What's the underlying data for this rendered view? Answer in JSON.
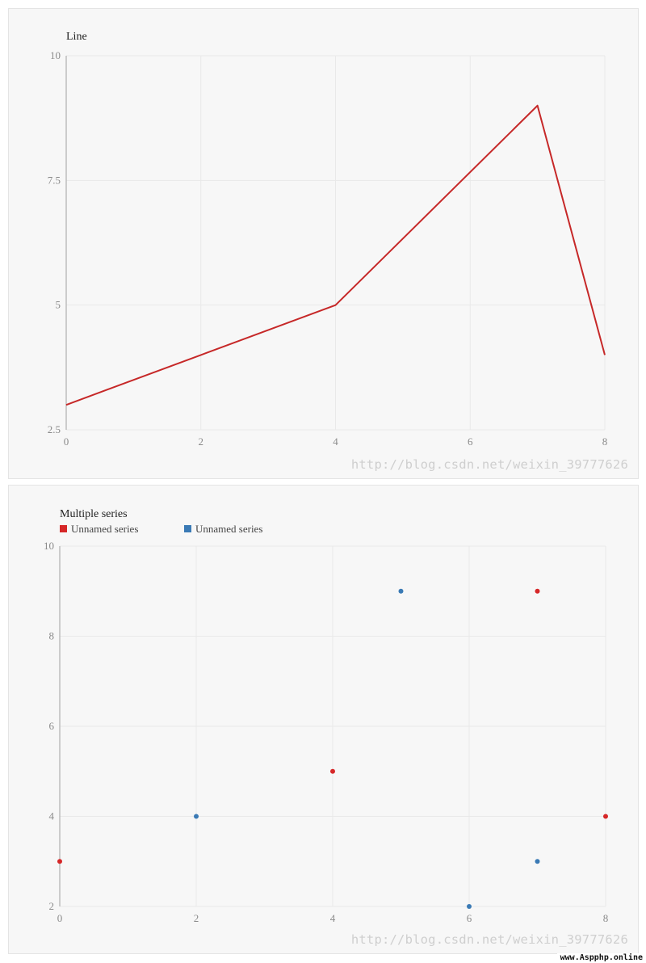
{
  "chart_data": [
    {
      "type": "line",
      "title": "Line",
      "xlabel": "",
      "ylabel": "",
      "xlim": [
        0,
        8
      ],
      "ylim": [
        2.5,
        10
      ],
      "x_ticks": [
        "0",
        "2",
        "4",
        "6",
        "8"
      ],
      "y_ticks": [
        "2.5",
        "5",
        "7.5",
        "10"
      ],
      "grid": true,
      "legend": false,
      "series": [
        {
          "color": "#c62828",
          "x": [
            0,
            2,
            4,
            7,
            8
          ],
          "y": [
            3,
            4,
            5,
            9,
            4
          ]
        }
      ]
    },
    {
      "type": "scatter",
      "title": "Multiple series",
      "xlabel": "",
      "ylabel": "",
      "xlim": [
        0,
        8
      ],
      "ylim": [
        2,
        10
      ],
      "x_ticks": [
        "0",
        "2",
        "4",
        "6",
        "8"
      ],
      "y_ticks": [
        "2",
        "4",
        "6",
        "8",
        "10"
      ],
      "grid": true,
      "legend": "top-left",
      "series": [
        {
          "name": "Unnamed series",
          "color": "#d62728",
          "x": [
            0,
            4,
            7,
            8
          ],
          "y": [
            3,
            5,
            9,
            4
          ]
        },
        {
          "name": "Unnamed series",
          "color": "#3a7ab5",
          "x": [
            2,
            5,
            6,
            7
          ],
          "y": [
            4,
            9,
            2,
            3
          ]
        }
      ]
    }
  ],
  "watermark": "http://blog.csdn.net/weixin_39777626",
  "site_badge": "www.Aspphp.online"
}
